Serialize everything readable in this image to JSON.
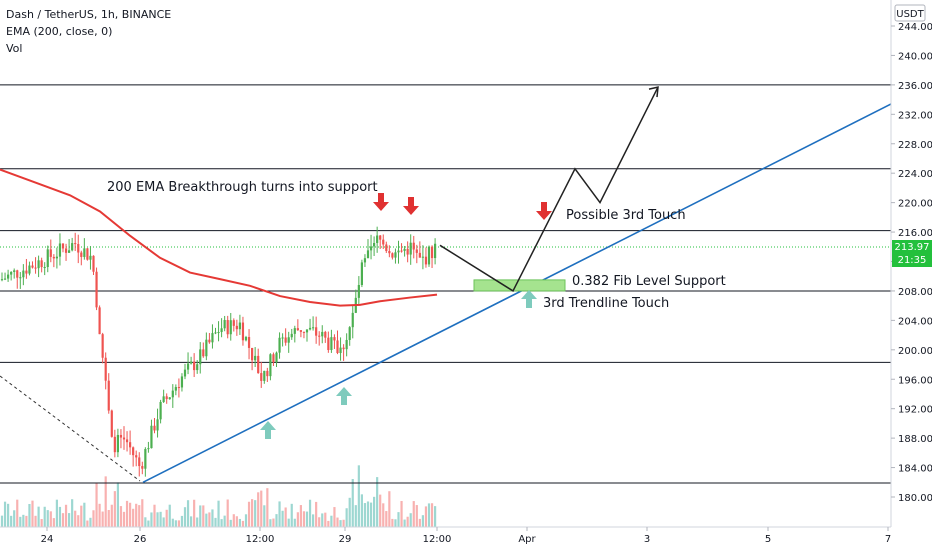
{
  "header": {
    "symbol_line": "Dash / TetherUS, 1h, BINANCE",
    "indicator_line": "EMA (200, close, 0)",
    "volume_line": "Vol"
  },
  "price_axis": {
    "currency_label": "USDT",
    "ticks": [
      "244.00",
      "240.00",
      "236.00",
      "232.00",
      "228.00",
      "224.00",
      "220.00",
      "216.00",
      "212.00",
      "208.00",
      "204.00",
      "200.00",
      "196.00",
      "192.00",
      "188.00",
      "184.00",
      "180.00"
    ],
    "last_price_label": "213.97",
    "countdown_label": "21:35"
  },
  "time_axis": {
    "ticks": [
      "24",
      "26",
      "12:00",
      "29",
      "12:00",
      "Apr",
      "3",
      "5",
      "7"
    ]
  },
  "annotations": {
    "ema_note": "200 EMA Breakthrough turns into support",
    "third_touch_note": "Possible 3rd Touch",
    "fib_note": "0.382 Fib Level Support",
    "trendline_note": "3rd Trendline Touch"
  },
  "colors": {
    "bull_candle": "#26a69a",
    "bear_candle": "#ef5350",
    "candle_up_green": "#4caf50",
    "ema_line": "#e53935",
    "trendline": "#1e6fbf",
    "horizontal_levels": "#131722",
    "up_arrow": "#7ecbbd",
    "down_arrow": "#e03131",
    "fib_box": "#a5e38f",
    "price_badge": "#23c03c"
  },
  "chart_data": {
    "type": "candlestick",
    "symbol": "Dash / TetherUS",
    "timeframe": "1h",
    "exchange": "BINANCE",
    "indicator": "EMA (200, close, 0)",
    "y_range": [
      178,
      246
    ],
    "last_price": 213.97,
    "horizontal_levels": [
      236.0,
      224.6,
      216.2,
      208.0,
      198.3,
      181.9
    ],
    "trendline": {
      "from": {
        "x": "Mar 25 ~23:00",
        "y": 182.0
      },
      "to": {
        "x": "Apr 7",
        "y": 233.4
      }
    },
    "ema_200_approx": [
      {
        "x": "Mar 23 12:00",
        "y": 224.5
      },
      {
        "x": "Mar 25 00:00",
        "y": 218.0
      },
      {
        "x": "Mar 26 12:00",
        "y": 212.0
      },
      {
        "x": "Mar 28 00:00",
        "y": 208.0
      },
      {
        "x": "Mar 29 12:00",
        "y": 206.0
      },
      {
        "x": "Mar 30 12:00",
        "y": 207.4
      }
    ],
    "price_path_approx": [
      {
        "x": "Mar 23 12:00",
        "y": 209.5
      },
      {
        "x": "Mar 24 12:00",
        "y": 214.5
      },
      {
        "x": "Mar 25 00:00",
        "y": 200.0
      },
      {
        "x": "Mar 25 12:00",
        "y": 184.0
      },
      {
        "x": "Mar 26 12:00",
        "y": 194.0
      },
      {
        "x": "Mar 27 12:00",
        "y": 204.0
      },
      {
        "x": "Mar 28 12:00",
        "y": 203.0
      },
      {
        "x": "Mar 29 00:00",
        "y": 200.0
      },
      {
        "x": "Mar 29 12:00",
        "y": 214.5
      },
      {
        "x": "Mar 30 00:00",
        "y": 213.0
      },
      {
        "x": "Mar 30 12:00",
        "y": 214.0
      }
    ],
    "projection_path": [
      {
        "x": "Mar 30 12:00",
        "y": 214.2
      },
      {
        "x": "Mar 31 12:00",
        "y": 208.0
      },
      {
        "x": "Apr 2 00:00",
        "y": 224.6
      },
      {
        "x": "Apr 2 12:00",
        "y": 220.0
      },
      {
        "x": "Apr 3 12:00",
        "y": 235.7
      }
    ],
    "fib_zone": {
      "label": "0.382 Fib Level Support",
      "y_low": 208.0,
      "y_high": 209.5
    }
  }
}
